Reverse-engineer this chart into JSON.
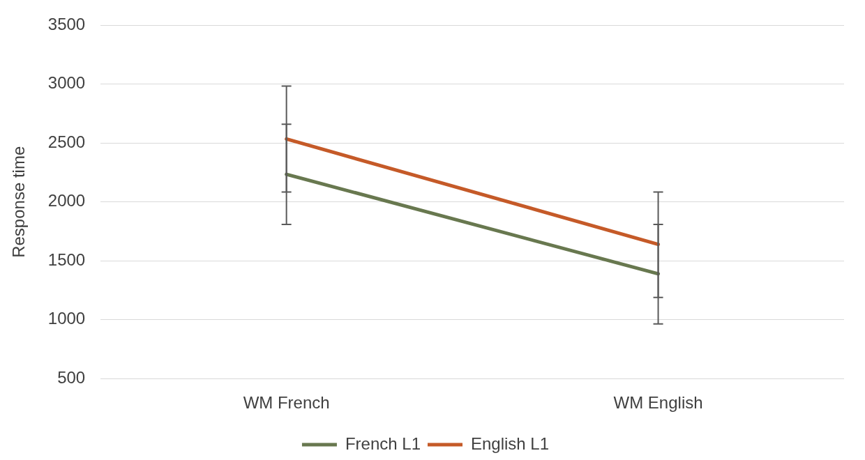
{
  "chart_data": {
    "type": "line",
    "ylabel": "Response time",
    "categories": [
      "WM French",
      "WM English"
    ],
    "series": [
      {
        "name": "French L1",
        "color": "#68784f",
        "values": [
          2235,
          1390
        ],
        "errors": [
          [
            1810,
            2660
          ],
          [
            965,
            1810
          ]
        ]
      },
      {
        "name": "English L1",
        "color": "#c55a28",
        "values": [
          2535,
          1640
        ],
        "errors": [
          [
            2085,
            2985
          ],
          [
            1190,
            2085
          ]
        ]
      }
    ],
    "ylim": [
      500,
      3500
    ],
    "yticks": [
      500,
      1000,
      1500,
      2000,
      2500,
      3000,
      3500
    ],
    "grid": "y",
    "legend": "bottom",
    "marker": "none",
    "line_style": "solid"
  }
}
